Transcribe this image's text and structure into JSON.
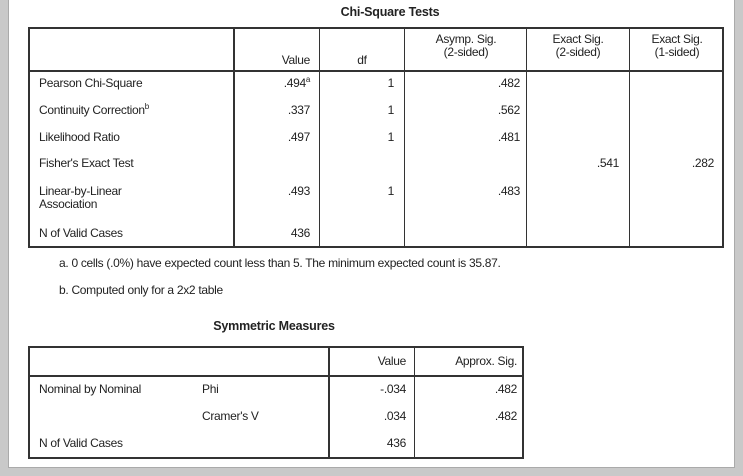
{
  "chi_square": {
    "title": "Chi-Square Tests",
    "headers": {
      "value": "Value",
      "df": "df",
      "asymp_line1": "Asymp. Sig.",
      "asymp_line2": "(2-sided)",
      "exact2_line1": "Exact Sig.",
      "exact2_line2": "(2-sided)",
      "exact1_line1": "Exact Sig.",
      "exact1_line2": "(1-sided)"
    },
    "rows": [
      {
        "label": "Pearson Chi-Square",
        "label_sup": "",
        "value": ".494",
        "value_sup": "a",
        "df": "1",
        "asymp": ".482",
        "exact2": "",
        "exact1": ""
      },
      {
        "label": "Continuity Correction",
        "label_sup": "b",
        "value": ".337",
        "value_sup": "",
        "df": "1",
        "asymp": ".562",
        "exact2": "",
        "exact1": ""
      },
      {
        "label": "Likelihood Ratio",
        "label_sup": "",
        "value": ".497",
        "value_sup": "",
        "df": "1",
        "asymp": ".481",
        "exact2": "",
        "exact1": ""
      },
      {
        "label": "Fisher's Exact Test",
        "label_sup": "",
        "value": "",
        "value_sup": "",
        "df": "",
        "asymp": "",
        "exact2": ".541",
        "exact1": ".282"
      },
      {
        "label": "Linear-by-Linear",
        "label_line2": "Association",
        "label_sup": "",
        "value": ".493",
        "value_sup": "",
        "df": "1",
        "asymp": ".483",
        "exact2": "",
        "exact1": ""
      },
      {
        "label": "N of Valid Cases",
        "label_sup": "",
        "value": "436",
        "value_sup": "",
        "df": "",
        "asymp": "",
        "exact2": "",
        "exact1": ""
      }
    ],
    "footnotes": [
      "a. 0 cells (.0%) have expected count less than 5. The minimum expected count is 35.87.",
      "b. Computed only for a 2x2 table"
    ]
  },
  "symmetric": {
    "title": "Symmetric Measures",
    "headers": {
      "value": "Value",
      "sig": "Approx. Sig."
    },
    "rows": [
      {
        "group": "Nominal by Nominal",
        "measure": "Phi",
        "value": "-.034",
        "sig": ".482"
      },
      {
        "group": "",
        "measure": "Cramer's V",
        "value": ".034",
        "sig": ".482"
      },
      {
        "group": "N of Valid Cases",
        "measure": "",
        "value": "436",
        "sig": ""
      }
    ]
  }
}
